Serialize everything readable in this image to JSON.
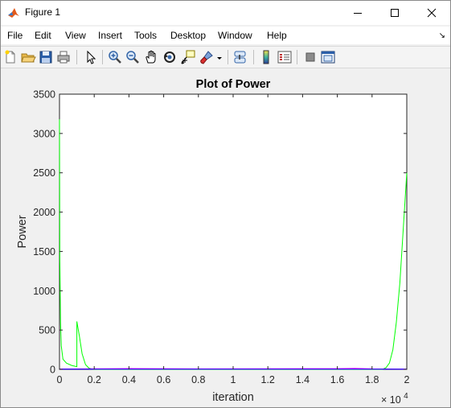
{
  "window": {
    "title": "Figure 1",
    "icon": "matlab-icon"
  },
  "menu": {
    "items": [
      "File",
      "Edit",
      "View",
      "Insert",
      "Tools",
      "Desktop",
      "Window",
      "Help"
    ],
    "overflow_arrow": "↘"
  },
  "toolbar": {
    "buttons": [
      "new-figure-icon",
      "open-file-icon",
      "save-icon",
      "print-icon",
      "edit-plot-arrow-icon",
      "zoom-in-icon",
      "zoom-out-icon",
      "pan-hand-icon",
      "rotate-3d-icon",
      "data-cursor-icon",
      "brush-icon",
      "link-plot-icon",
      "insert-colorbar-icon",
      "insert-legend-icon",
      "hide-plot-tools-icon",
      "show-plot-tools-icon"
    ]
  },
  "colors": {
    "series_green": "#00ff00",
    "series_magenta": "#ff00ff",
    "series_blue": "#0000ff",
    "axes_text": "#262626"
  },
  "chart_data": {
    "type": "line",
    "title": "Plot of Power",
    "xlabel": "iteration",
    "ylabel": "Power",
    "x_exponent_label": "× 10",
    "x_exponent_power": "4",
    "xlim": [
      0,
      20000
    ],
    "ylim": [
      0,
      3500
    ],
    "x_ticks": [
      "0",
      "0.2",
      "0.4",
      "0.6",
      "0.8",
      "1",
      "1.2",
      "1.4",
      "1.6",
      "1.8",
      "2"
    ],
    "y_ticks": [
      "0",
      "500",
      "1000",
      "1500",
      "2000",
      "2500",
      "3000",
      "3500"
    ],
    "grid": false,
    "series": [
      {
        "color": "#00ff00",
        "x": [
          0,
          20,
          60,
          100,
          200,
          400,
          700,
          1000,
          1000,
          1150,
          1300,
          1500,
          1700,
          1900,
          2200,
          2500,
          18600,
          18800,
          19000,
          19200,
          19400,
          19600,
          19800,
          20000
        ],
        "y": [
          3180,
          1400,
          600,
          300,
          130,
          80,
          50,
          35,
          610,
          420,
          200,
          60,
          15,
          3,
          0,
          0,
          0,
          20,
          80,
          250,
          600,
          1100,
          1800,
          2500
        ]
      },
      {
        "color": "#ff00ff",
        "x": [
          0,
          2500,
          4000,
          8000,
          12000,
          16000,
          17000,
          18000,
          20000
        ],
        "y": [
          5,
          8,
          10,
          6,
          8,
          9,
          12,
          6,
          4
        ]
      },
      {
        "color": "#0000ff",
        "x": [
          0,
          20000
        ],
        "y": [
          2,
          2
        ]
      }
    ]
  }
}
